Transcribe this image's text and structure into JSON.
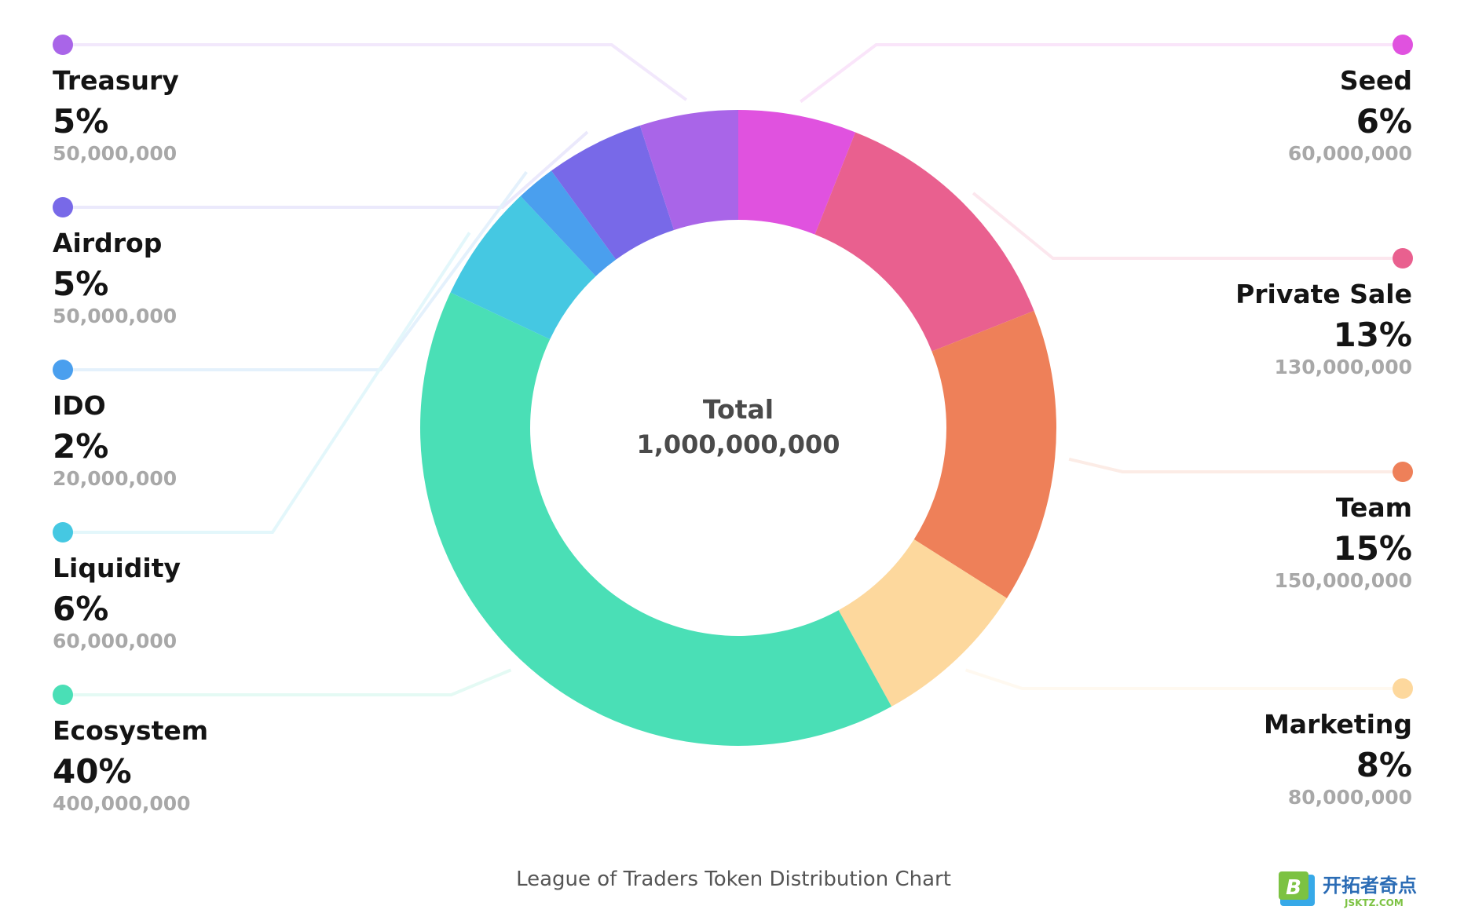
{
  "chart_data": {
    "type": "pie",
    "title": "League of Traders Token Distribution Chart",
    "center_label": "Total",
    "center_value": "1,000,000,000",
    "slices": [
      {
        "name": "Seed",
        "percent": 6,
        "percent_label": "6%",
        "amount": "60,000,000",
        "color": "#E052DF"
      },
      {
        "name": "Private Sale",
        "percent": 13,
        "percent_label": "13%",
        "amount": "130,000,000",
        "color": "#E9608F"
      },
      {
        "name": "Team",
        "percent": 15,
        "percent_label": "15%",
        "amount": "150,000,000",
        "color": "#EE8059"
      },
      {
        "name": "Marketing",
        "percent": 8,
        "percent_label": "8%",
        "amount": "80,000,000",
        "color": "#FDD89D"
      },
      {
        "name": "Ecosystem",
        "percent": 40,
        "percent_label": "40%",
        "amount": "400,000,000",
        "color": "#4ADFB6"
      },
      {
        "name": "Liquidity",
        "percent": 6,
        "percent_label": "6%",
        "amount": "60,000,000",
        "color": "#45C8E2"
      },
      {
        "name": "IDO",
        "percent": 2,
        "percent_label": "2%",
        "amount": "20,000,000",
        "color": "#4A9FEE"
      },
      {
        "name": "Airdrop",
        "percent": 5,
        "percent_label": "5%",
        "amount": "50,000,000",
        "color": "#7869E8"
      },
      {
        "name": "Treasury",
        "percent": 5,
        "percent_label": "5%",
        "amount": "50,000,000",
        "color": "#A965E8"
      }
    ],
    "legend_placement": "left-and-right"
  },
  "watermark": {
    "logo_text": "开拓者奇点",
    "logo_sub": "JSKTZ.COM"
  }
}
